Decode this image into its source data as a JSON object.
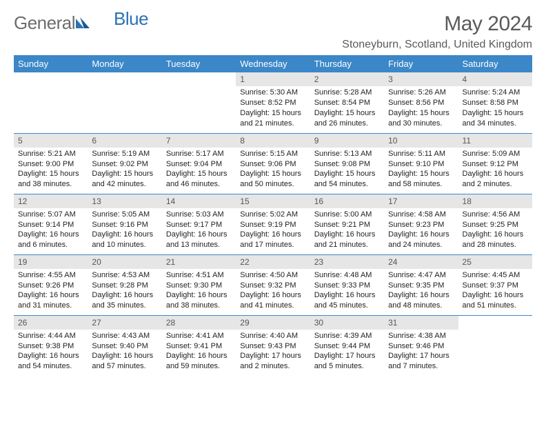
{
  "colors": {
    "header_bg": "#3b87c8",
    "header_text": "#ffffff",
    "daynum_bg": "#e6e6e6",
    "daynum_text": "#555555",
    "body_text": "#222222",
    "logo_gray": "#6d6d6d",
    "logo_blue": "#2a72b5",
    "title_color": "#5a5a5a",
    "row_sep": "#3b87c8"
  },
  "logo": {
    "part1": "General",
    "part2": "Blue"
  },
  "title": "May 2024",
  "location": "Stoneyburn, Scotland, United Kingdom",
  "dayHeaders": [
    "Sunday",
    "Monday",
    "Tuesday",
    "Wednesday",
    "Thursday",
    "Friday",
    "Saturday"
  ],
  "weeks": [
    [
      null,
      null,
      null,
      {
        "n": "1",
        "sr": "Sunrise: 5:30 AM",
        "ss": "Sunset: 8:52 PM",
        "d1": "Daylight: 15 hours",
        "d2": "and 21 minutes."
      },
      {
        "n": "2",
        "sr": "Sunrise: 5:28 AM",
        "ss": "Sunset: 8:54 PM",
        "d1": "Daylight: 15 hours",
        "d2": "and 26 minutes."
      },
      {
        "n": "3",
        "sr": "Sunrise: 5:26 AM",
        "ss": "Sunset: 8:56 PM",
        "d1": "Daylight: 15 hours",
        "d2": "and 30 minutes."
      },
      {
        "n": "4",
        "sr": "Sunrise: 5:24 AM",
        "ss": "Sunset: 8:58 PM",
        "d1": "Daylight: 15 hours",
        "d2": "and 34 minutes."
      }
    ],
    [
      {
        "n": "5",
        "sr": "Sunrise: 5:21 AM",
        "ss": "Sunset: 9:00 PM",
        "d1": "Daylight: 15 hours",
        "d2": "and 38 minutes."
      },
      {
        "n": "6",
        "sr": "Sunrise: 5:19 AM",
        "ss": "Sunset: 9:02 PM",
        "d1": "Daylight: 15 hours",
        "d2": "and 42 minutes."
      },
      {
        "n": "7",
        "sr": "Sunrise: 5:17 AM",
        "ss": "Sunset: 9:04 PM",
        "d1": "Daylight: 15 hours",
        "d2": "and 46 minutes."
      },
      {
        "n": "8",
        "sr": "Sunrise: 5:15 AM",
        "ss": "Sunset: 9:06 PM",
        "d1": "Daylight: 15 hours",
        "d2": "and 50 minutes."
      },
      {
        "n": "9",
        "sr": "Sunrise: 5:13 AM",
        "ss": "Sunset: 9:08 PM",
        "d1": "Daylight: 15 hours",
        "d2": "and 54 minutes."
      },
      {
        "n": "10",
        "sr": "Sunrise: 5:11 AM",
        "ss": "Sunset: 9:10 PM",
        "d1": "Daylight: 15 hours",
        "d2": "and 58 minutes."
      },
      {
        "n": "11",
        "sr": "Sunrise: 5:09 AM",
        "ss": "Sunset: 9:12 PM",
        "d1": "Daylight: 16 hours",
        "d2": "and 2 minutes."
      }
    ],
    [
      {
        "n": "12",
        "sr": "Sunrise: 5:07 AM",
        "ss": "Sunset: 9:14 PM",
        "d1": "Daylight: 16 hours",
        "d2": "and 6 minutes."
      },
      {
        "n": "13",
        "sr": "Sunrise: 5:05 AM",
        "ss": "Sunset: 9:16 PM",
        "d1": "Daylight: 16 hours",
        "d2": "and 10 minutes."
      },
      {
        "n": "14",
        "sr": "Sunrise: 5:03 AM",
        "ss": "Sunset: 9:17 PM",
        "d1": "Daylight: 16 hours",
        "d2": "and 13 minutes."
      },
      {
        "n": "15",
        "sr": "Sunrise: 5:02 AM",
        "ss": "Sunset: 9:19 PM",
        "d1": "Daylight: 16 hours",
        "d2": "and 17 minutes."
      },
      {
        "n": "16",
        "sr": "Sunrise: 5:00 AM",
        "ss": "Sunset: 9:21 PM",
        "d1": "Daylight: 16 hours",
        "d2": "and 21 minutes."
      },
      {
        "n": "17",
        "sr": "Sunrise: 4:58 AM",
        "ss": "Sunset: 9:23 PM",
        "d1": "Daylight: 16 hours",
        "d2": "and 24 minutes."
      },
      {
        "n": "18",
        "sr": "Sunrise: 4:56 AM",
        "ss": "Sunset: 9:25 PM",
        "d1": "Daylight: 16 hours",
        "d2": "and 28 minutes."
      }
    ],
    [
      {
        "n": "19",
        "sr": "Sunrise: 4:55 AM",
        "ss": "Sunset: 9:26 PM",
        "d1": "Daylight: 16 hours",
        "d2": "and 31 minutes."
      },
      {
        "n": "20",
        "sr": "Sunrise: 4:53 AM",
        "ss": "Sunset: 9:28 PM",
        "d1": "Daylight: 16 hours",
        "d2": "and 35 minutes."
      },
      {
        "n": "21",
        "sr": "Sunrise: 4:51 AM",
        "ss": "Sunset: 9:30 PM",
        "d1": "Daylight: 16 hours",
        "d2": "and 38 minutes."
      },
      {
        "n": "22",
        "sr": "Sunrise: 4:50 AM",
        "ss": "Sunset: 9:32 PM",
        "d1": "Daylight: 16 hours",
        "d2": "and 41 minutes."
      },
      {
        "n": "23",
        "sr": "Sunrise: 4:48 AM",
        "ss": "Sunset: 9:33 PM",
        "d1": "Daylight: 16 hours",
        "d2": "and 45 minutes."
      },
      {
        "n": "24",
        "sr": "Sunrise: 4:47 AM",
        "ss": "Sunset: 9:35 PM",
        "d1": "Daylight: 16 hours",
        "d2": "and 48 minutes."
      },
      {
        "n": "25",
        "sr": "Sunrise: 4:45 AM",
        "ss": "Sunset: 9:37 PM",
        "d1": "Daylight: 16 hours",
        "d2": "and 51 minutes."
      }
    ],
    [
      {
        "n": "26",
        "sr": "Sunrise: 4:44 AM",
        "ss": "Sunset: 9:38 PM",
        "d1": "Daylight: 16 hours",
        "d2": "and 54 minutes."
      },
      {
        "n": "27",
        "sr": "Sunrise: 4:43 AM",
        "ss": "Sunset: 9:40 PM",
        "d1": "Daylight: 16 hours",
        "d2": "and 57 minutes."
      },
      {
        "n": "28",
        "sr": "Sunrise: 4:41 AM",
        "ss": "Sunset: 9:41 PM",
        "d1": "Daylight: 16 hours",
        "d2": "and 59 minutes."
      },
      {
        "n": "29",
        "sr": "Sunrise: 4:40 AM",
        "ss": "Sunset: 9:43 PM",
        "d1": "Daylight: 17 hours",
        "d2": "and 2 minutes."
      },
      {
        "n": "30",
        "sr": "Sunrise: 4:39 AM",
        "ss": "Sunset: 9:44 PM",
        "d1": "Daylight: 17 hours",
        "d2": "and 5 minutes."
      },
      {
        "n": "31",
        "sr": "Sunrise: 4:38 AM",
        "ss": "Sunset: 9:46 PM",
        "d1": "Daylight: 17 hours",
        "d2": "and 7 minutes."
      },
      null
    ]
  ]
}
